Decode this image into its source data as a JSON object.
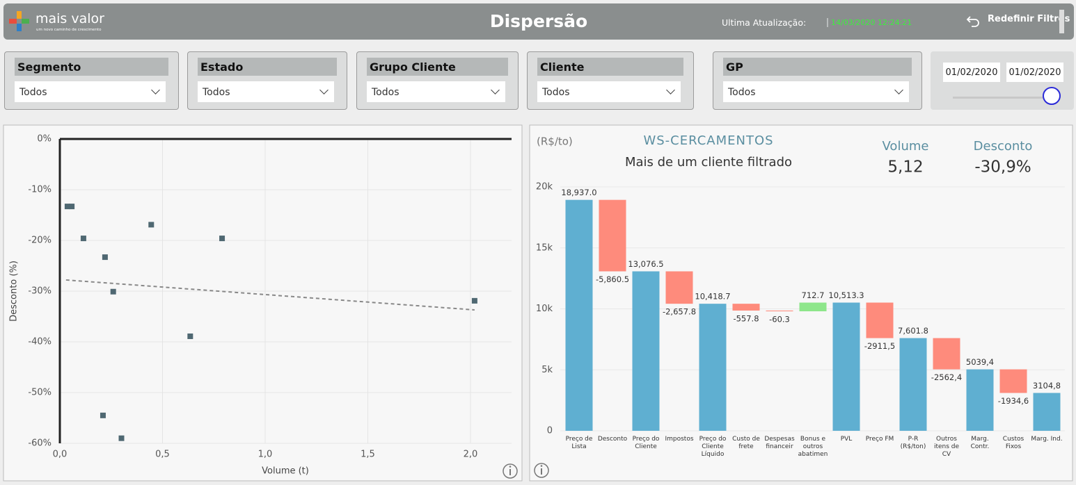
{
  "header": {
    "brand": "mais valor",
    "tagline": "um novo caminho de crescimento",
    "title": "Dispersão",
    "update_label": "Ultima Atualização:",
    "update_value": "14/03/2020 12:24:21",
    "reset_button": "Redefinir Filtros"
  },
  "filters": [
    {
      "label": "Segmento",
      "value": "Todos"
    },
    {
      "label": "Estado",
      "value": "Todos"
    },
    {
      "label": "Grupo Cliente",
      "value": "Todos"
    },
    {
      "label": "Cliente",
      "value": "Todos"
    },
    {
      "label": "GP",
      "value": "Todos"
    }
  ],
  "date_range": {
    "start": "01/02/2020",
    "end": "01/02/2020"
  },
  "chart_data": [
    {
      "type": "scatter",
      "x_label": "Volume (t)",
      "y_label": "Desconto (%)",
      "color": "#4f6872",
      "x": [
        0.037,
        0.058,
        0.115,
        0.22,
        0.26,
        0.445,
        0.79,
        2.02,
        0.635,
        0.21,
        0.3
      ],
      "values": [
        -13.3,
        -13.3,
        -19.6,
        -23.3,
        -30.1,
        -16.9,
        -19.6,
        -31.9,
        -38.9,
        -54.5,
        -59.0
      ],
      "trendline": {
        "x": [
          0.03,
          2.02
        ],
        "values": [
          -27.8,
          -33.7
        ],
        "color": "#888888"
      },
      "xlim": [
        0,
        2.2
      ],
      "ylim": [
        -60,
        0
      ],
      "xticks": [
        {
          "value": 0,
          "label": "0,0"
        },
        {
          "value": 0.5,
          "label": "0,5"
        },
        {
          "value": 1,
          "label": "1,0"
        },
        {
          "value": 1.5,
          "label": "1,5"
        },
        {
          "value": 2,
          "label": "2,0"
        }
      ],
      "yticks": [
        {
          "value": 0,
          "label": "0%"
        },
        {
          "value": -10,
          "label": "-10%"
        },
        {
          "value": -20,
          "label": "-20%"
        },
        {
          "value": -30,
          "label": "-30%"
        },
        {
          "value": -40,
          "label": "-40%"
        },
        {
          "value": -50,
          "label": "-50%"
        },
        {
          "value": -60,
          "label": "-60%"
        }
      ],
      "grid": true
    },
    {
      "type": "waterfall",
      "unit_label": "(R$/to)",
      "title": "WS-CERCAMENTOS",
      "subtitle": "Mais de um cliente filtrado",
      "kpis": [
        {
          "label": "Volume",
          "value": "5,12"
        },
        {
          "label": "Desconto",
          "value": "-30,9%"
        }
      ],
      "categories": [
        "Preço de Lista",
        "Desconto",
        "Preço do Cliente",
        "Impostos",
        "Preço do Cliente Líquido",
        "Custo de frete",
        "Despesas financeir",
        "Bonus e outros abatimen",
        "PVL",
        "Preço FM",
        "P-R (R$/ton)",
        "Outros itens de CV",
        "Marg. Contr.",
        "Custos Fixos",
        "Marg. Ind."
      ],
      "values": [
        18937.0,
        -5860.5,
        13076.5,
        -2657.8,
        10418.7,
        -557.8,
        -60.3,
        712.7,
        10513.3,
        -2911.5,
        7601.8,
        -2562.4,
        5039.4,
        -1934.6,
        3104.8
      ],
      "value_labels": [
        "18,937.0",
        "-5,860.5",
        "13,076.5",
        "-2,657.8",
        "10,418.7",
        "-557.8",
        "-60.3",
        "712.7",
        "10,513.3",
        "-2911,5",
        "7,601.8",
        "-2562,4",
        "5039,4",
        "-1934,6",
        "3104,8"
      ],
      "measure": [
        "absolute",
        "relative",
        "absolute",
        "relative",
        "absolute",
        "relative",
        "relative",
        "relative",
        "absolute",
        "relative",
        "absolute",
        "relative",
        "absolute",
        "relative",
        "absolute"
      ],
      "colors": {
        "total": "#5fafd1",
        "decrease": "#fe8b7c",
        "increase": "#8ee68b"
      },
      "ylim": [
        0,
        20000
      ],
      "yticks": [
        0,
        {
          "value": 5000,
          "label": "5k"
        },
        {
          "value": 10000,
          "label": "10k"
        },
        {
          "value": 15000,
          "label": "15k"
        },
        {
          "value": 20000,
          "label": "20k"
        }
      ],
      "grid": true
    }
  ]
}
